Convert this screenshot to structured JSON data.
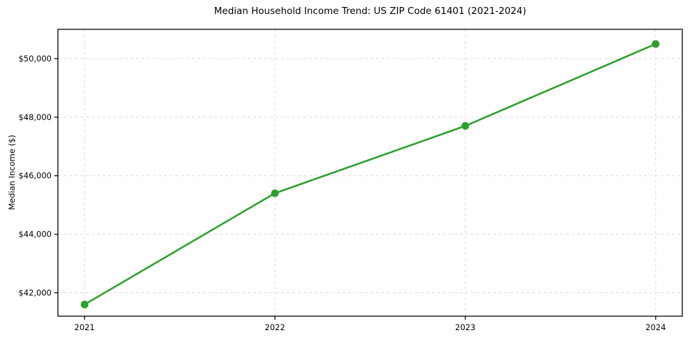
{
  "chart_data": {
    "type": "line",
    "title": "Median Household Income Trend: US ZIP Code 61401 (2021-2024)",
    "xlabel": "",
    "ylabel": "Median Income ($)",
    "x": [
      2021,
      2022,
      2023,
      2024
    ],
    "x_labels": [
      "2021",
      "2022",
      "2023",
      "2024"
    ],
    "series": [
      {
        "name": "Median Household Income",
        "values": [
          41600,
          45400,
          47700,
          50500
        ]
      }
    ],
    "yticks": {
      "values": [
        42000,
        44000,
        46000,
        48000,
        50000
      ],
      "labels": [
        "$42,000",
        "$44,000",
        "$46,000",
        "$48,000",
        "$50,000"
      ]
    },
    "xlim": [
      2020.86,
      2024.14
    ],
    "ylim": [
      41200,
      51000
    ],
    "grid": "both-dashed",
    "legend": "none",
    "colors": {
      "line": "#2ca02c",
      "marker": "#2ca02c",
      "grid": "#d9d9d9",
      "spine": "#000000",
      "background": "#ffffff",
      "text": "#000000"
    }
  }
}
